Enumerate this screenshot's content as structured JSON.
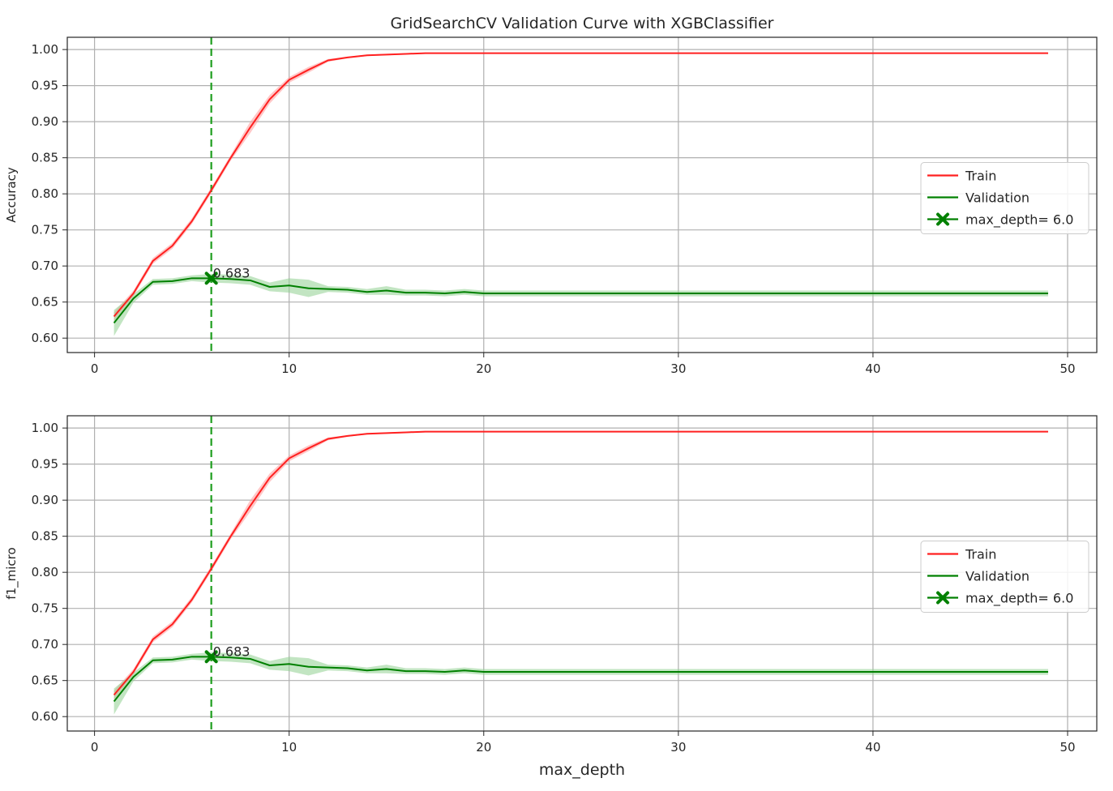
{
  "title": "GridSearchCV Validation Curve with XGBClassifier",
  "xlabel": "max_depth",
  "colors": {
    "train": "#ff2020",
    "validation": "#008000",
    "best": "#1f9e1f",
    "grid": "#b0b0b0",
    "band_train": "#ff9999",
    "band_validation": "#90d090"
  },
  "chart_data": [
    {
      "type": "line",
      "ylabel": "Accuracy",
      "xlim": [
        -1.4,
        51.5
      ],
      "ylim": [
        0.58,
        1.017
      ],
      "x_ticks": [
        0,
        10,
        20,
        30,
        40,
        50
      ],
      "y_ticks": [
        "0.60",
        "0.65",
        "0.70",
        "0.75",
        "0.80",
        "0.85",
        "0.90",
        "0.95",
        "1.00"
      ],
      "grid": true,
      "legend_position": "center-right",
      "series": [
        {
          "name": "Train",
          "x": [
            1,
            2,
            3,
            4,
            5,
            6,
            7,
            8,
            9,
            10,
            11,
            12,
            13,
            14,
            15,
            16,
            17,
            18,
            19,
            20,
            25,
            30,
            35,
            40,
            45,
            49
          ],
          "y": [
            0.63,
            0.662,
            0.707,
            0.728,
            0.762,
            0.805,
            0.85,
            0.892,
            0.931,
            0.958,
            0.972,
            0.985,
            0.989,
            0.992,
            0.993,
            0.994,
            0.995,
            0.995,
            0.995,
            0.995,
            0.995,
            0.995,
            0.995,
            0.995,
            0.995,
            0.995
          ],
          "band": [
            0.006,
            0.004,
            0.004,
            0.004,
            0.004,
            0.004,
            0.004,
            0.008,
            0.006,
            0.004,
            0.004,
            0.002,
            0.001,
            0.001,
            0.001,
            0.001,
            0.001,
            0.001,
            0.001,
            0.001,
            0.001,
            0.001,
            0.001,
            0.001,
            0.001,
            0.001
          ]
        },
        {
          "name": "Validation",
          "x": [
            1,
            2,
            3,
            4,
            5,
            6,
            7,
            8,
            9,
            10,
            11,
            12,
            13,
            14,
            15,
            16,
            17,
            18,
            19,
            20,
            25,
            30,
            35,
            40,
            45,
            49
          ],
          "y": [
            0.621,
            0.655,
            0.678,
            0.679,
            0.683,
            0.683,
            0.682,
            0.68,
            0.671,
            0.673,
            0.669,
            0.668,
            0.667,
            0.664,
            0.666,
            0.663,
            0.663,
            0.662,
            0.664,
            0.662,
            0.662,
            0.662,
            0.662,
            0.662,
            0.662,
            0.662
          ],
          "band": [
            0.018,
            0.006,
            0.004,
            0.004,
            0.004,
            0.006,
            0.006,
            0.006,
            0.006,
            0.01,
            0.012,
            0.004,
            0.004,
            0.004,
            0.006,
            0.004,
            0.004,
            0.004,
            0.004,
            0.004,
            0.004,
            0.004,
            0.004,
            0.004,
            0.004,
            0.004
          ]
        }
      ],
      "best": {
        "x": 6.0,
        "y": 0.683,
        "label": "0.683",
        "legend": "max_depth= 6.0"
      }
    },
    {
      "type": "line",
      "ylabel": "f1_micro",
      "xlim": [
        -1.4,
        51.5
      ],
      "ylim": [
        0.58,
        1.017
      ],
      "x_ticks": [
        0,
        10,
        20,
        30,
        40,
        50
      ],
      "y_ticks": [
        "0.60",
        "0.65",
        "0.70",
        "0.75",
        "0.80",
        "0.85",
        "0.90",
        "0.95",
        "1.00"
      ],
      "grid": true,
      "legend_position": "center-right",
      "series": [
        {
          "name": "Train",
          "x": [
            1,
            2,
            3,
            4,
            5,
            6,
            7,
            8,
            9,
            10,
            11,
            12,
            13,
            14,
            15,
            16,
            17,
            18,
            19,
            20,
            25,
            30,
            35,
            40,
            45,
            49
          ],
          "y": [
            0.63,
            0.662,
            0.707,
            0.728,
            0.762,
            0.805,
            0.85,
            0.892,
            0.931,
            0.958,
            0.972,
            0.985,
            0.989,
            0.992,
            0.993,
            0.994,
            0.995,
            0.995,
            0.995,
            0.995,
            0.995,
            0.995,
            0.995,
            0.995,
            0.995,
            0.995
          ],
          "band": [
            0.006,
            0.004,
            0.004,
            0.004,
            0.004,
            0.004,
            0.004,
            0.008,
            0.006,
            0.004,
            0.004,
            0.002,
            0.001,
            0.001,
            0.001,
            0.001,
            0.001,
            0.001,
            0.001,
            0.001,
            0.001,
            0.001,
            0.001,
            0.001,
            0.001,
            0.001
          ]
        },
        {
          "name": "Validation",
          "x": [
            1,
            2,
            3,
            4,
            5,
            6,
            7,
            8,
            9,
            10,
            11,
            12,
            13,
            14,
            15,
            16,
            17,
            18,
            19,
            20,
            25,
            30,
            35,
            40,
            45,
            49
          ],
          "y": [
            0.621,
            0.655,
            0.678,
            0.679,
            0.683,
            0.683,
            0.682,
            0.68,
            0.671,
            0.673,
            0.669,
            0.668,
            0.667,
            0.664,
            0.666,
            0.663,
            0.663,
            0.662,
            0.664,
            0.662,
            0.662,
            0.662,
            0.662,
            0.662,
            0.662,
            0.662
          ],
          "band": [
            0.018,
            0.006,
            0.004,
            0.004,
            0.004,
            0.006,
            0.006,
            0.006,
            0.006,
            0.01,
            0.012,
            0.004,
            0.004,
            0.004,
            0.006,
            0.004,
            0.004,
            0.004,
            0.004,
            0.004,
            0.004,
            0.004,
            0.004,
            0.004,
            0.004,
            0.004
          ]
        }
      ],
      "best": {
        "x": 6.0,
        "y": 0.683,
        "label": "0.683",
        "legend": "max_depth= 6.0"
      }
    }
  ]
}
